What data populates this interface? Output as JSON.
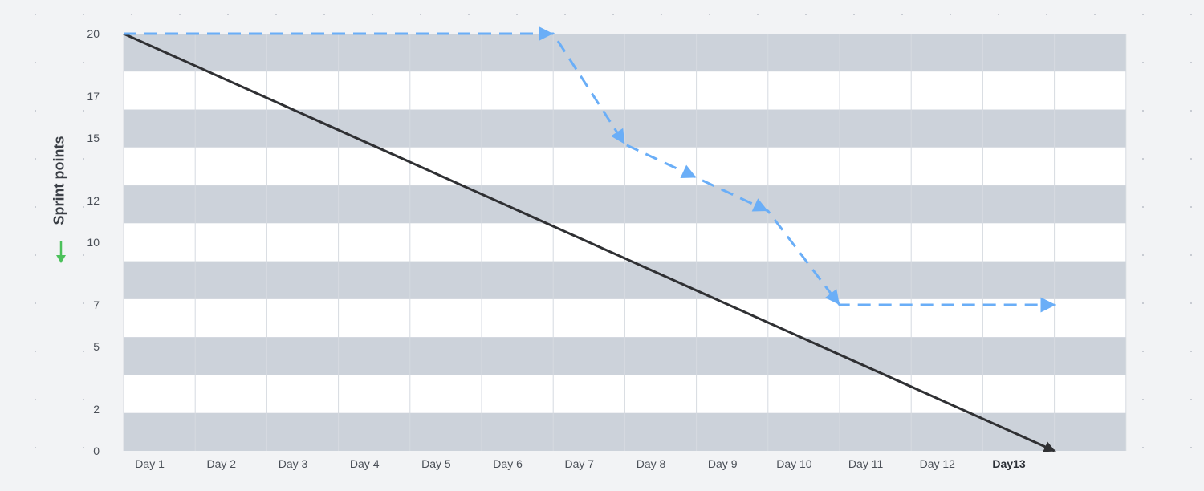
{
  "chart_data": {
    "type": "line",
    "ylabel": "Sprint points",
    "x": [
      "Day 1",
      "Day 2",
      "Day 3",
      "Day 4",
      "Day 5",
      "Day 6",
      "Day 7",
      "Day 8",
      "Day 9",
      "Day 10",
      "Day 11",
      "Day 12",
      "Day13"
    ],
    "y_ticks": [
      20,
      17,
      15,
      12,
      10,
      7,
      5,
      2,
      0
    ],
    "ylim": [
      0,
      20
    ],
    "series": [
      {
        "role": "ideal",
        "style": "solid",
        "color": "#2f3033",
        "points": [
          [
            0,
            20
          ],
          [
            13,
            0
          ]
        ]
      },
      {
        "role": "actual",
        "style": "dashed",
        "color": "#6aaef7",
        "points": [
          [
            0,
            20
          ],
          [
            6,
            20
          ],
          [
            7,
            14.7
          ],
          [
            8,
            13.1
          ],
          [
            9,
            11.5
          ],
          [
            10,
            7
          ],
          [
            13,
            7
          ]
        ]
      }
    ],
    "grid": "horizontal-bands",
    "colors": {
      "band": "#ccd2da",
      "band_alt": "#ffffff",
      "gridline": "#d6dae0",
      "y_arrow": "#4cc15b"
    }
  }
}
